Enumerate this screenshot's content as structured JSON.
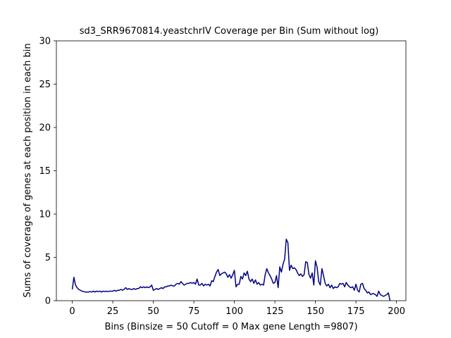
{
  "chart_data": {
    "type": "line",
    "title": "sd3_SRR9670814.yeastchrIV Coverage per Bin (Sum without log)",
    "x_label": "Bins  (Binsize = 50 Cutoff = 0 Max gene Length =9807)",
    "y_label": "Sums of coverage of genes at each position in each bin",
    "x": [
      0,
      1,
      2,
      3,
      4,
      5,
      6,
      7,
      8,
      9,
      10,
      11,
      12,
      13,
      14,
      15,
      16,
      17,
      18,
      19,
      20,
      21,
      22,
      23,
      24,
      25,
      26,
      27,
      28,
      29,
      30,
      31,
      32,
      33,
      34,
      35,
      36,
      37,
      38,
      39,
      40,
      41,
      42,
      43,
      44,
      45,
      46,
      47,
      48,
      49,
      50,
      51,
      52,
      53,
      54,
      55,
      56,
      57,
      58,
      59,
      60,
      61,
      62,
      63,
      64,
      65,
      66,
      67,
      68,
      69,
      70,
      71,
      72,
      73,
      74,
      75,
      76,
      77,
      78,
      79,
      80,
      81,
      82,
      83,
      84,
      85,
      86,
      87,
      88,
      89,
      90,
      91,
      92,
      93,
      94,
      95,
      96,
      97,
      98,
      99,
      100,
      101,
      102,
      103,
      104,
      105,
      106,
      107,
      108,
      109,
      110,
      111,
      112,
      113,
      114,
      115,
      116,
      117,
      118,
      119,
      120,
      121,
      122,
      123,
      124,
      125,
      126,
      127,
      128,
      129,
      130,
      131,
      132,
      133,
      134,
      135,
      136,
      137,
      138,
      139,
      140,
      141,
      142,
      143,
      144,
      145,
      146,
      147,
      148,
      149,
      150,
      151,
      152,
      153,
      154,
      155,
      156,
      157,
      158,
      159,
      160,
      161,
      162,
      163,
      164,
      165,
      166,
      167,
      168,
      169,
      170,
      171,
      172,
      173,
      174,
      175,
      176,
      177,
      178,
      179,
      180,
      181,
      182,
      183,
      184,
      185,
      186,
      187,
      188,
      189,
      190,
      191,
      192,
      193,
      194,
      195,
      196
    ],
    "series": [
      {
        "color": "#000080",
        "values": [
          1.3,
          2.7,
          1.8,
          1.5,
          1.3,
          1.2,
          1.1,
          1.05,
          1.0,
          1.0,
          1.0,
          1.05,
          1.0,
          1.1,
          1.0,
          1.1,
          1.05,
          1.1,
          1.0,
          1.1,
          1.05,
          1.1,
          1.05,
          1.1,
          1.1,
          1.1,
          1.2,
          1.1,
          1.2,
          1.2,
          1.3,
          1.2,
          1.3,
          1.5,
          1.3,
          1.4,
          1.3,
          1.3,
          1.4,
          1.3,
          1.4,
          1.4,
          1.6,
          1.5,
          1.6,
          1.5,
          1.6,
          1.5,
          1.6,
          1.8,
          1.2,
          1.3,
          1.4,
          1.3,
          1.4,
          1.5,
          1.4,
          1.6,
          1.6,
          1.7,
          1.7,
          1.8,
          1.7,
          1.7,
          1.9,
          2.0,
          1.9,
          2.2,
          2.0,
          1.8,
          1.9,
          2.0,
          2.0,
          2.1,
          2.0,
          2.1,
          1.9,
          2.5,
          1.8,
          1.8,
          2.0,
          1.7,
          1.9,
          1.8,
          1.9,
          1.7,
          2.3,
          2.2,
          2.8,
          3.3,
          3.6,
          2.9,
          3.1,
          3.2,
          3.3,
          3.1,
          2.7,
          3.0,
          2.6,
          3.0,
          3.5,
          1.6,
          1.9,
          1.9,
          2.8,
          2.5,
          3.2,
          2.9,
          3.4,
          2.5,
          2.2,
          2.5,
          2.0,
          2.4,
          1.9,
          2.1,
          1.8,
          1.9,
          1.8,
          3.0,
          3.7,
          3.2,
          2.9,
          2.5,
          2.0,
          2.1,
          2.9,
          1.5,
          3.9,
          3.3,
          4.2,
          4.8,
          7.1,
          6.7,
          3.5,
          4.1,
          3.7,
          3.8,
          3.6,
          3.2,
          2.9,
          3.1,
          2.8,
          3.0,
          4.5,
          4.4,
          3.0,
          2.6,
          3.2,
          1.8,
          4.6,
          3.9,
          2.2,
          1.8,
          3.7,
          2.9,
          2.0,
          1.7,
          1.9,
          1.5,
          1.8,
          1.4,
          1.6,
          1.5,
          1.6,
          2.0,
          1.9,
          2.0,
          1.6,
          2.1,
          1.8,
          1.6,
          1.5,
          1.6,
          1.2,
          1.9,
          1.2,
          1.0,
          1.9,
          2.0,
          1.4,
          1.2,
          0.9,
          1.0,
          0.7,
          0.8,
          0.8,
          0.7,
          0.5,
          1.1,
          0.7,
          0.6,
          0.5,
          0.6,
          0.7,
          0.9,
          0.0
        ]
      }
    ],
    "xlim": [
      -9.8,
      205.8
    ],
    "xticks": [
      0,
      25,
      50,
      75,
      100,
      125,
      150,
      175,
      200
    ],
    "ylim": [
      0,
      30
    ],
    "yticks": [
      0,
      5,
      10,
      15,
      20,
      25,
      30
    ]
  }
}
